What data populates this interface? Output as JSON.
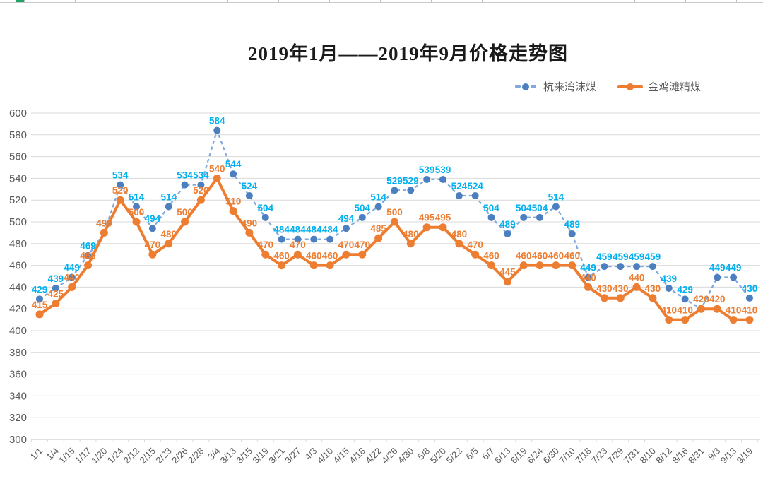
{
  "worksheet": {
    "selected_column_indicator_color": "#21a366"
  },
  "chart": {
    "title": "2019年1月——2019年9月价格走势图",
    "legend": {
      "items": [
        {
          "label": "杭来湾沫煤"
        },
        {
          "label": "金鸡滩精煤"
        }
      ]
    }
  },
  "chart_data": {
    "type": "line",
    "title": "2019年1月——2019年9月价格走势图",
    "categories": [
      "1/1",
      "1/4",
      "1/15",
      "1/17",
      "1/20",
      "1/24",
      "2/12",
      "2/15",
      "2/23",
      "2/26",
      "2/28",
      "3/4",
      "3/13",
      "3/15",
      "3/19",
      "3/21",
      "3/27",
      "4/3",
      "4/10",
      "4/15",
      "4/18",
      "4/22",
      "4/26",
      "4/30",
      "5/8",
      "5/20",
      "5/22",
      "6/5",
      "6/7",
      "6/13",
      "6/19",
      "6/24",
      "6/30",
      "7/10",
      "7/18",
      "7/23",
      "7/29",
      "7/31",
      "8/10",
      "8/12",
      "8/16",
      "8/31",
      "9/3",
      "9/13",
      "9/19"
    ],
    "series": [
      {
        "name": "杭来湾沫煤",
        "values": [
          429,
          439,
          449,
          469,
          490,
          534,
          514,
          494,
          514,
          534,
          534,
          584,
          544,
          524,
          504,
          484,
          484,
          484,
          484,
          494,
          504,
          514,
          529,
          529,
          539,
          539,
          524,
          524,
          504,
          489,
          504,
          504,
          514,
          489,
          449,
          459,
          459,
          459,
          459,
          439,
          429,
          420,
          449,
          449,
          430
        ],
        "line_color": "#7fa9dc",
        "marker_color": "#4c7fbf",
        "label_color": "#00b0f0",
        "dashed": true
      },
      {
        "name": "金鸡滩精煤",
        "values": [
          415,
          425,
          440,
          460,
          490,
          520,
          500,
          470,
          480,
          500,
          520,
          540,
          510,
          490,
          470,
          460,
          470,
          460,
          460,
          470,
          470,
          485,
          500,
          480,
          495,
          495,
          480,
          470,
          460,
          445,
          460,
          460,
          460,
          460,
          440,
          430,
          430,
          440,
          430,
          410,
          410,
          420,
          420,
          410,
          410
        ],
        "line_color": "#ed7d31",
        "marker_color": "#ed7d31",
        "label_color": "#ed7d31",
        "dashed": false
      }
    ],
    "ylim": [
      300,
      600
    ],
    "ytick_step": 20,
    "grid": true,
    "data_labels": true,
    "legend_position": "top-right",
    "style": {
      "gridline_color": "#d9d9d9",
      "axis_line_color": "#c0c0c0",
      "axis_label_color": "#595959"
    }
  }
}
